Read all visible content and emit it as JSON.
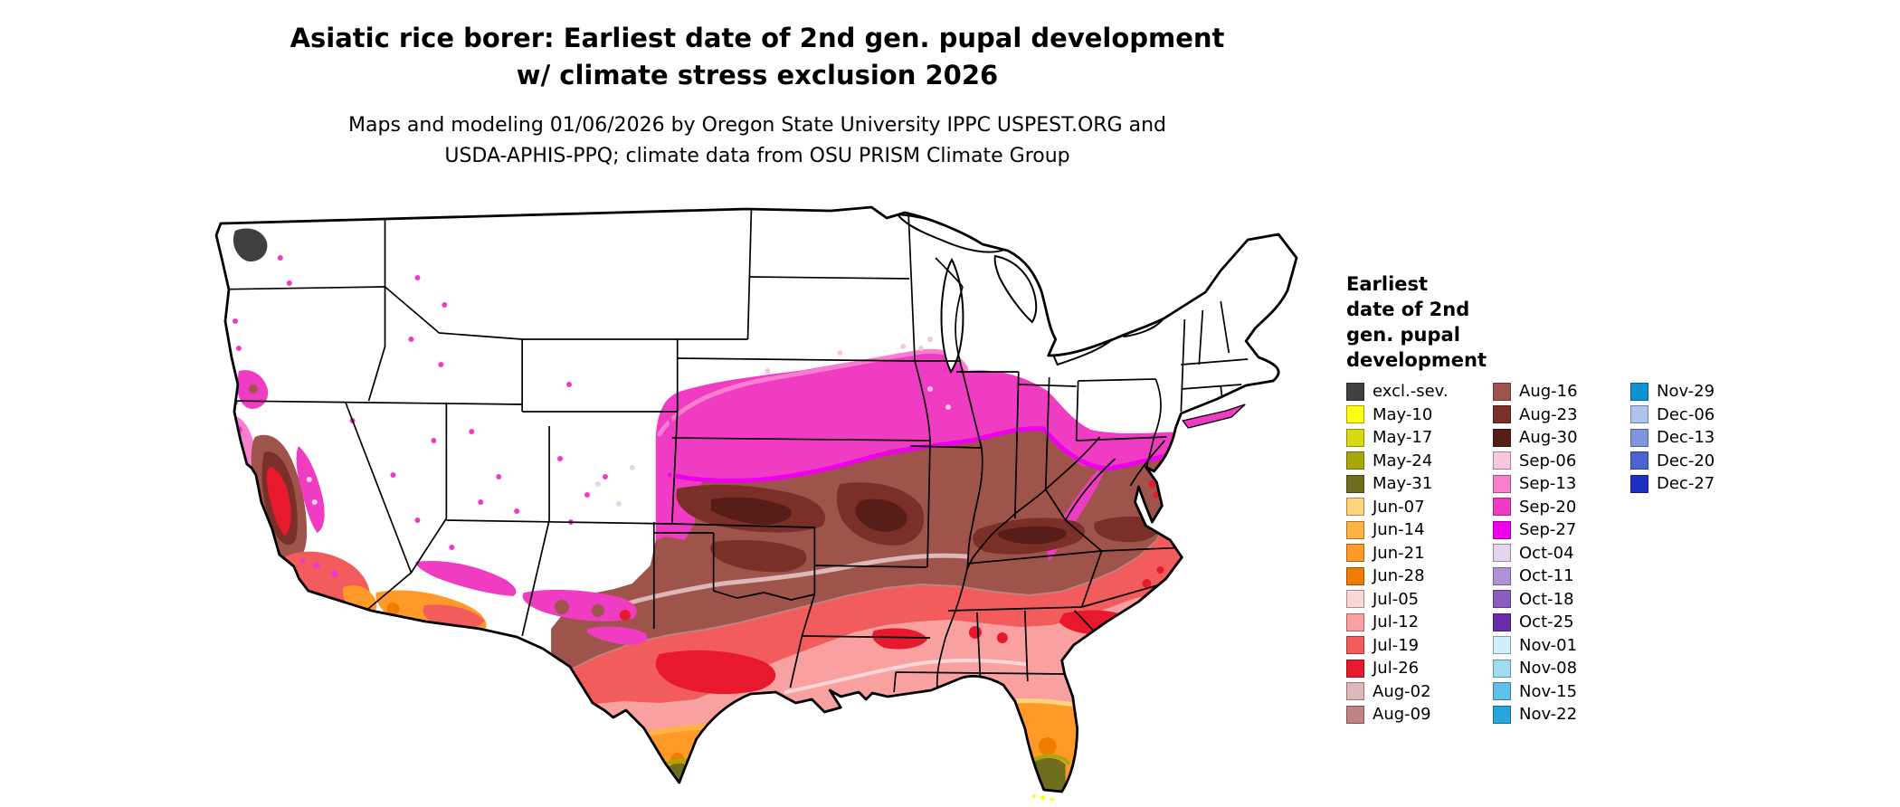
{
  "header": {
    "title_line1": "Asiatic rice borer: Earliest date of 2nd gen. pupal development",
    "title_line2": "w/ climate stress exclusion 2026",
    "subtitle_line1": "Maps and modeling 01/06/2026 by Oregon State University IPPC USPEST.ORG and",
    "subtitle_line2": "USDA-APHIS-PPQ; climate data from OSU PRISM Climate Group"
  },
  "legend": {
    "title_lines": [
      "Earliest",
      "date of 2nd",
      "gen. pupal",
      "development"
    ],
    "columns": [
      [
        {
          "label": "excl.-sev.",
          "color": "#404040"
        },
        {
          "label": "May-10",
          "color": "#FFFF14"
        },
        {
          "label": "May-17",
          "color": "#D9D911"
        },
        {
          "label": "May-24",
          "color": "#A8A80D"
        },
        {
          "label": "May-31",
          "color": "#6E6E1E"
        },
        {
          "label": "Jun-07",
          "color": "#FFD37F"
        },
        {
          "label": "Jun-14",
          "color": "#FFB347"
        },
        {
          "label": "Jun-21",
          "color": "#FF9A28"
        },
        {
          "label": "Jun-28",
          "color": "#F07D00"
        },
        {
          "label": "Jul-05",
          "color": "#FCD7D7"
        },
        {
          "label": "Jul-12",
          "color": "#F9A1A1"
        },
        {
          "label": "Jul-19",
          "color": "#F25C5C"
        },
        {
          "label": "Jul-26",
          "color": "#E8192C"
        },
        {
          "label": "Aug-02",
          "color": "#DDB8B8"
        },
        {
          "label": "Aug-09",
          "color": "#C08282"
        }
      ],
      [
        {
          "label": "Aug-16",
          "color": "#9E544A"
        },
        {
          "label": "Aug-23",
          "color": "#7A3028"
        },
        {
          "label": "Aug-30",
          "color": "#571E18"
        },
        {
          "label": "Sep-06",
          "color": "#F9C6DE"
        },
        {
          "label": "Sep-13",
          "color": "#F77FCE"
        },
        {
          "label": "Sep-20",
          "color": "#F03CC3"
        },
        {
          "label": "Sep-27",
          "color": "#EE00EE"
        },
        {
          "label": "Oct-04",
          "color": "#E3D5EE"
        },
        {
          "label": "Oct-11",
          "color": "#B391D6"
        },
        {
          "label": "Oct-18",
          "color": "#8B5CC3"
        },
        {
          "label": "Oct-25",
          "color": "#6A2DA8"
        },
        {
          "label": "Nov-01",
          "color": "#CFEFFA"
        },
        {
          "label": "Nov-08",
          "color": "#9FDCF2"
        },
        {
          "label": "Nov-15",
          "color": "#5FC0E8"
        },
        {
          "label": "Nov-22",
          "color": "#28A5DC"
        }
      ],
      [
        {
          "label": "Nov-29",
          "color": "#0E93D2"
        },
        {
          "label": "Dec-06",
          "color": "#AFC3EC"
        },
        {
          "label": "Dec-13",
          "color": "#7E97E0"
        },
        {
          "label": "Dec-20",
          "color": "#4B63D3"
        },
        {
          "label": "Dec-27",
          "color": "#1F2EC2"
        }
      ]
    ]
  },
  "chart_data": {
    "type": "heatmap",
    "subtype": "us-choropleth-map",
    "title": "Asiatic rice borer: Earliest date of 2nd gen. pupal development w/ climate stress exclusion 2026",
    "legend_title": "Earliest date of 2nd gen. pupal development",
    "categories": [
      "excl.-sev.",
      "May-10",
      "May-17",
      "May-24",
      "May-31",
      "Jun-07",
      "Jun-14",
      "Jun-21",
      "Jun-28",
      "Jul-05",
      "Jul-12",
      "Jul-19",
      "Jul-26",
      "Aug-02",
      "Aug-09",
      "Aug-16",
      "Aug-23",
      "Aug-30",
      "Sep-06",
      "Sep-13",
      "Sep-20",
      "Sep-27",
      "Oct-04",
      "Oct-11",
      "Oct-18",
      "Oct-25",
      "Nov-01",
      "Nov-08",
      "Nov-15",
      "Nov-22",
      "Nov-29",
      "Dec-06",
      "Dec-13",
      "Dec-20",
      "Dec-27"
    ],
    "legend_position": "right"
  }
}
